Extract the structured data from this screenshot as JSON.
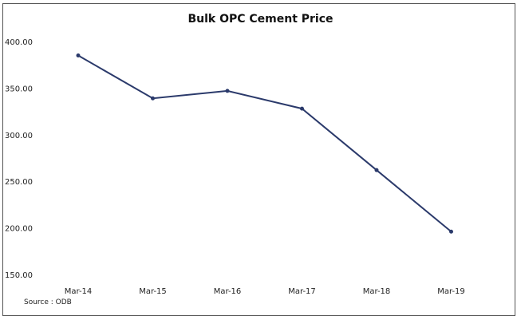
{
  "chart_data": {
    "type": "line",
    "title": "Bulk OPC Cement Price",
    "xlabel": "",
    "ylabel": "",
    "categories": [
      "Mar-14",
      "Mar-15",
      "Mar-16",
      "Mar-17",
      "Mar-18",
      "Mar-19"
    ],
    "values": [
      385,
      339,
      347,
      328,
      262,
      196
    ],
    "ylim": [
      150,
      400
    ],
    "yticks": [
      "150.00",
      "200.00",
      "250.00",
      "300.00",
      "350.00",
      "400.00"
    ],
    "grid": false,
    "legend": "none",
    "line_color": "#2b3a6b",
    "source": "Source : ODB"
  }
}
